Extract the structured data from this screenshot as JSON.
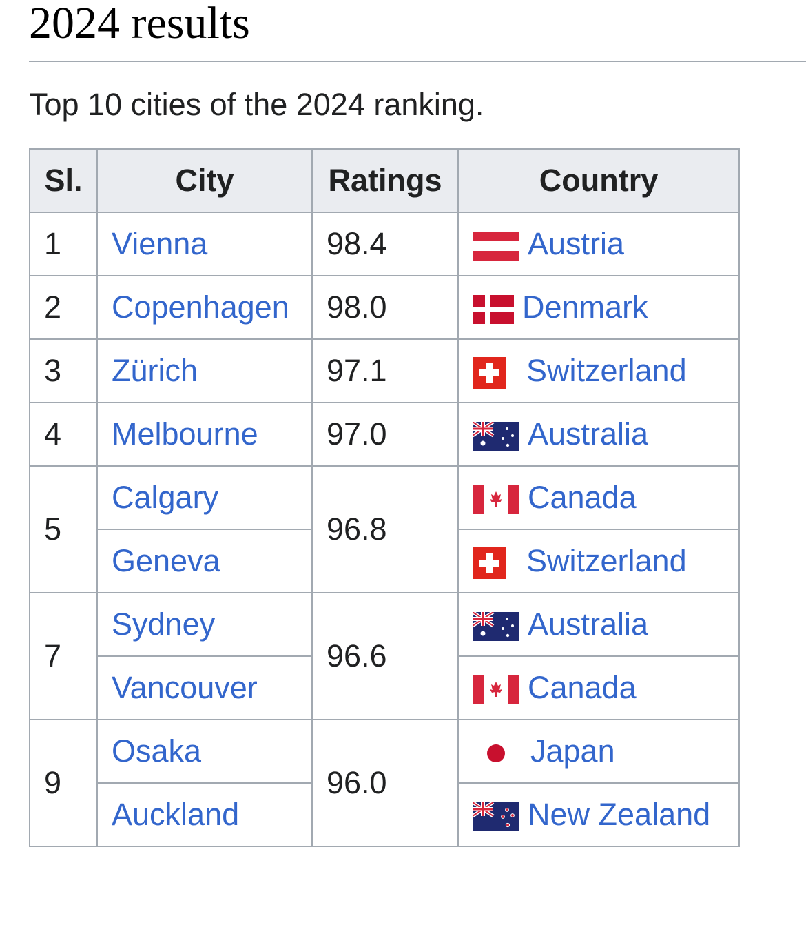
{
  "page": {
    "heading": "2024 results",
    "caption": "Top 10 cities of the 2024 ranking."
  },
  "table": {
    "headers": [
      "Sl.",
      "City",
      "Ratings",
      "Country"
    ],
    "groups": [
      {
        "sl": "1",
        "rating": "98.4",
        "entries": [
          {
            "city": "Vienna",
            "country": "Austria",
            "flag": "austria-flag-icon"
          }
        ]
      },
      {
        "sl": "2",
        "rating": "98.0",
        "entries": [
          {
            "city": "Copenhagen",
            "country": "Denmark",
            "flag": "denmark-flag-icon"
          }
        ]
      },
      {
        "sl": "3",
        "rating": "97.1",
        "entries": [
          {
            "city": "Zürich",
            "country": "Switzerland",
            "flag": "switzerland-flag-icon"
          }
        ]
      },
      {
        "sl": "4",
        "rating": "97.0",
        "entries": [
          {
            "city": "Melbourne",
            "country": "Australia",
            "flag": "australia-flag-icon"
          }
        ]
      },
      {
        "sl": "5",
        "rating": "96.8",
        "entries": [
          {
            "city": "Calgary",
            "country": "Canada",
            "flag": "canada-flag-icon"
          },
          {
            "city": "Geneva",
            "country": "Switzerland",
            "flag": "switzerland-flag-icon"
          }
        ]
      },
      {
        "sl": "7",
        "rating": "96.6",
        "entries": [
          {
            "city": "Sydney",
            "country": "Australia",
            "flag": "australia-flag-icon"
          },
          {
            "city": "Vancouver",
            "country": "Canada",
            "flag": "canada-flag-icon"
          }
        ]
      },
      {
        "sl": "9",
        "rating": "96.0",
        "entries": [
          {
            "city": "Osaka",
            "country": "Japan",
            "flag": "japan-flag-icon"
          },
          {
            "city": "Auckland",
            "country": "New Zealand",
            "flag": "new-zealand-flag-icon"
          }
        ]
      }
    ]
  },
  "colors": {
    "link": "#3366cc",
    "header_bg": "#eaecf0",
    "border": "#a2a9b1"
  }
}
